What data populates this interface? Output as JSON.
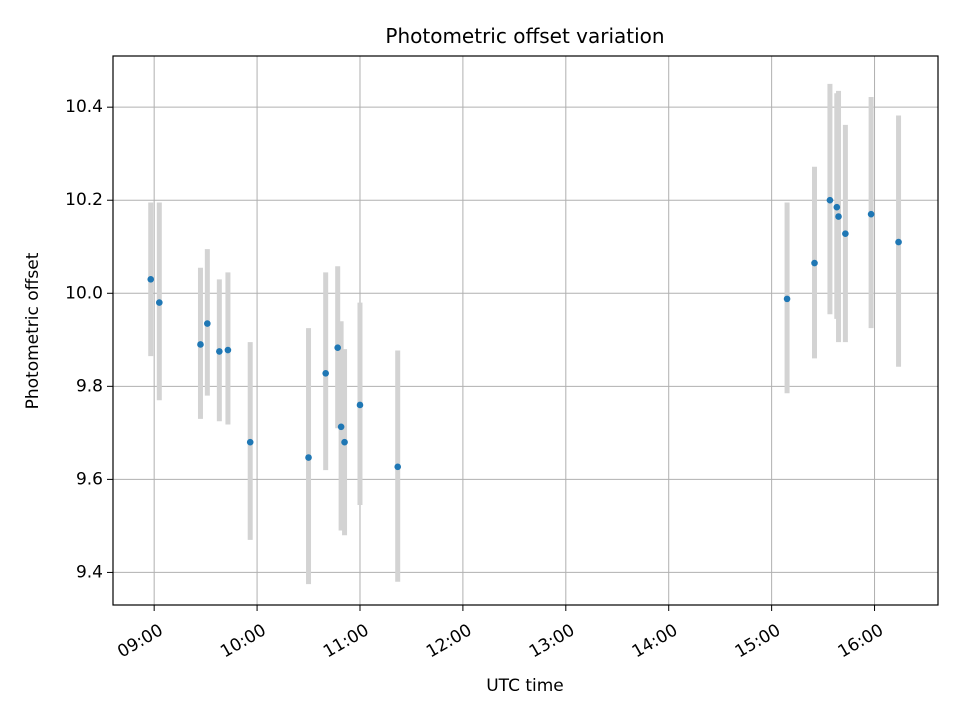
{
  "chart_data": {
    "type": "scatter",
    "title": "Photometric offset variation",
    "xlabel": "UTC time",
    "ylabel": "Photometric offset",
    "x_axis": {
      "kind": "time",
      "range": [
        "08:36",
        "16:37"
      ],
      "ticks": [
        "09:00",
        "10:00",
        "11:00",
        "12:00",
        "13:00",
        "14:00",
        "15:00",
        "16:00"
      ]
    },
    "y_axis": {
      "range": [
        9.33,
        10.51
      ],
      "ticks": [
        "9.4",
        "9.6",
        "9.8",
        "10.0",
        "10.2",
        "10.4"
      ]
    },
    "grid": true,
    "colors": {
      "point": "#1f77b4",
      "errorbar": "#d3d3d3",
      "grid": "#b0b0b0"
    },
    "series": [
      {
        "points": [
          {
            "x": "08:58",
            "y": 10.03,
            "low": 9.865,
            "high": 10.195
          },
          {
            "x": "09:03",
            "y": 9.98,
            "low": 9.77,
            "high": 10.195
          },
          {
            "x": "09:27",
            "y": 9.89,
            "low": 9.73,
            "high": 10.055
          },
          {
            "x": "09:31",
            "y": 9.935,
            "low": 9.78,
            "high": 10.095
          },
          {
            "x": "09:38",
            "y": 9.875,
            "low": 9.725,
            "high": 10.03
          },
          {
            "x": "09:43",
            "y": 9.878,
            "low": 9.718,
            "high": 10.045
          },
          {
            "x": "09:56",
            "y": 9.68,
            "low": 9.47,
            "high": 9.895
          },
          {
            "x": "10:30",
            "y": 9.647,
            "low": 9.375,
            "high": 9.925
          },
          {
            "x": "10:40",
            "y": 9.828,
            "low": 9.62,
            "high": 10.045
          },
          {
            "x": "10:47",
            "y": 9.883,
            "low": 9.71,
            "high": 10.058
          },
          {
            "x": "10:49",
            "y": 9.713,
            "low": 9.49,
            "high": 9.94
          },
          {
            "x": "10:51",
            "y": 9.68,
            "low": 9.48,
            "high": 9.88
          },
          {
            "x": "11:00",
            "y": 9.76,
            "low": 9.545,
            "high": 9.98
          },
          {
            "x": "11:22",
            "y": 9.627,
            "low": 9.38,
            "high": 9.877
          },
          {
            "x": "15:09",
            "y": 9.988,
            "low": 9.785,
            "high": 10.195
          },
          {
            "x": "15:25",
            "y": 10.065,
            "low": 9.86,
            "high": 10.272
          },
          {
            "x": "15:34",
            "y": 10.2,
            "low": 9.955,
            "high": 10.45
          },
          {
            "x": "15:38",
            "y": 10.185,
            "low": 9.945,
            "high": 10.43
          },
          {
            "x": "15:39",
            "y": 10.165,
            "low": 9.895,
            "high": 10.435
          },
          {
            "x": "15:43",
            "y": 10.128,
            "low": 9.895,
            "high": 10.362
          },
          {
            "x": "15:58",
            "y": 10.17,
            "low": 9.925,
            "high": 10.422
          },
          {
            "x": "16:14",
            "y": 10.11,
            "low": 9.842,
            "high": 10.382
          }
        ]
      }
    ]
  }
}
